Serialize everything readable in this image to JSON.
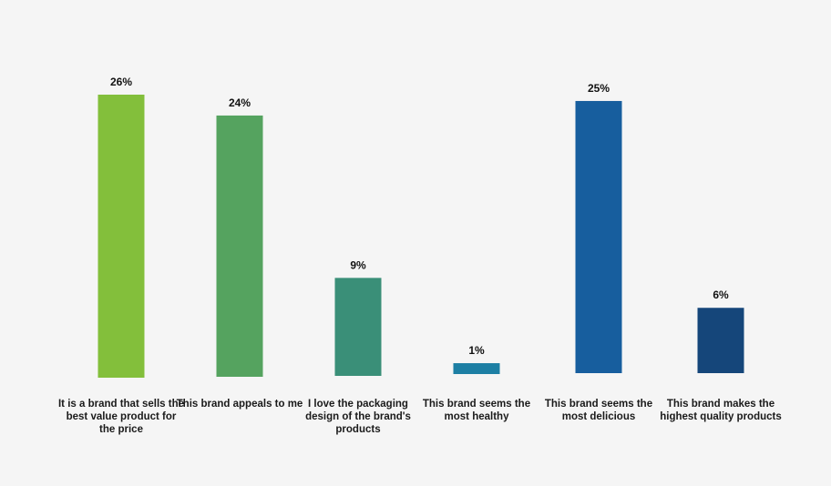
{
  "chart_data": {
    "type": "bar",
    "title": "",
    "xlabel": "",
    "ylabel": "",
    "ylim": [
      0,
      26
    ],
    "grid": false,
    "legend": "none",
    "categories": [
      "It is a brand that sells the best value product for the price",
      "This brand appeals to me",
      "I love the packaging design of the brand's products",
      "This brand seems the most healthy",
      "This brand seems the most delicious",
      "This brand makes the highest quality products"
    ],
    "values": [
      26,
      24,
      9,
      1,
      25,
      6
    ],
    "data_labels": [
      "26%",
      "24%",
      "9%",
      "1%",
      "25%",
      "6%"
    ],
    "colors": [
      "#83bf3b",
      "#55a35f",
      "#3a8f78",
      "#1d7fa4",
      "#175e9e",
      "#15467a"
    ]
  }
}
